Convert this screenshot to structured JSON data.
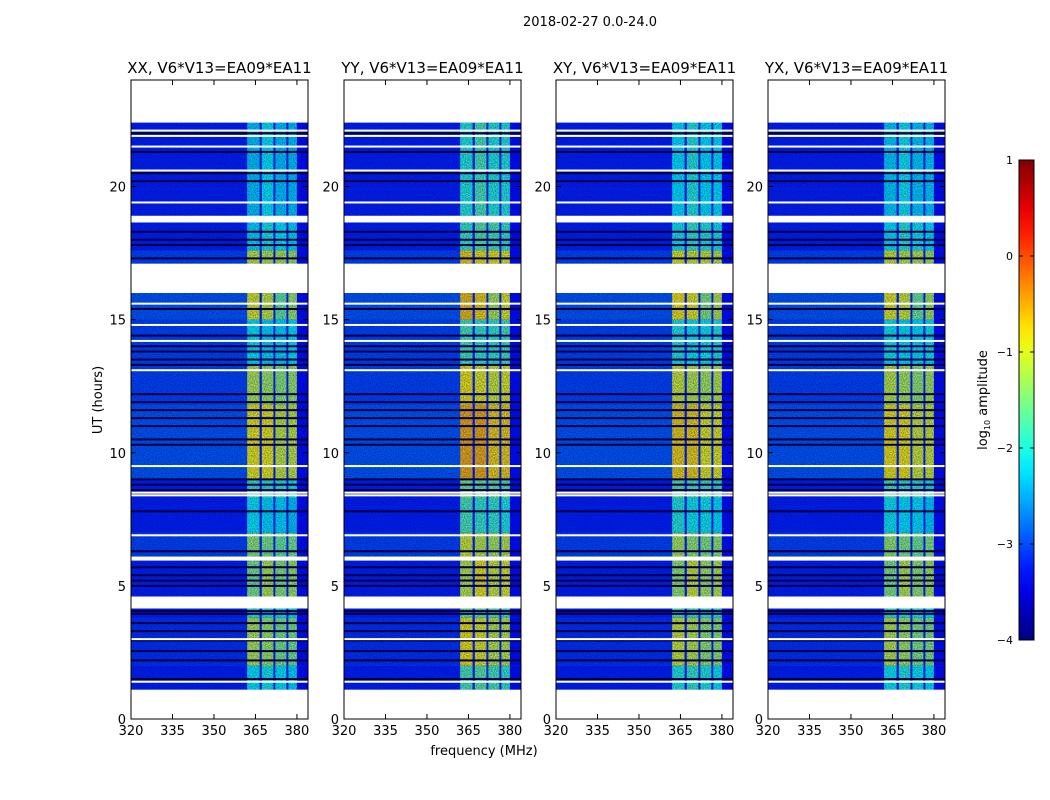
{
  "chart_data": {
    "type": "heatmap",
    "title": "2018-02-27 0.0-24.0",
    "xlabel": "frequency (MHz)",
    "ylabel": "UT (hours)",
    "xlim": [
      320,
      384
    ],
    "ylim": [
      0,
      24
    ],
    "xticks": [
      320,
      335,
      350,
      365,
      380
    ],
    "yticks": [
      0,
      5,
      10,
      15,
      20
    ],
    "colorbar": {
      "label_main": "log",
      "label_sub": "10",
      "label_rest": " amplitude",
      "colormap": "jet",
      "range": [
        -4,
        1
      ],
      "ticks": [
        1,
        0,
        -1,
        -2,
        -3,
        -4
      ]
    },
    "background_level": -3.2,
    "frequency_bands_mhz": [
      [
        320,
        362
      ],
      [
        362,
        366.5
      ],
      [
        367.3,
        371.5
      ],
      [
        372.2,
        376.2
      ],
      [
        376.9,
        380
      ],
      [
        380,
        384
      ]
    ],
    "time_segments": [
      {
        "start": 1.1,
        "end": 2.0,
        "levels": [
          -3.2,
          -2.1,
          -2.0,
          -2.1,
          -2.2,
          -3.3
        ]
      },
      {
        "start": 2.0,
        "end": 3.8,
        "levels": [
          -3.1,
          -1.2,
          -1.3,
          -1.5,
          -1.5,
          -3.3
        ]
      },
      {
        "start": 3.8,
        "end": 4.15,
        "levels": [
          -3.2,
          -1.9,
          -2.0,
          -2.0,
          -2.1,
          -3.3
        ]
      },
      {
        "start": 4.6,
        "end": 5.95,
        "levels": [
          -3.2,
          -1.5,
          -1.2,
          -1.4,
          -1.3,
          -3.3
        ]
      },
      {
        "start": 6.1,
        "end": 7.0,
        "levels": [
          -3.0,
          -1.4,
          -1.5,
          -1.6,
          -1.5,
          -3.3
        ]
      },
      {
        "start": 7.0,
        "end": 8.3,
        "levels": [
          -3.2,
          -2.1,
          -2.2,
          -2.2,
          -2.3,
          -3.3
        ]
      },
      {
        "start": 8.3,
        "end": 9.0,
        "levels": [
          -3.2,
          -1.8,
          -1.9,
          -1.9,
          -2.0,
          -3.3
        ]
      },
      {
        "start": 9.0,
        "end": 11.8,
        "levels": [
          -2.9,
          -0.9,
          -0.9,
          -1.1,
          -1.1,
          -3.3
        ]
      },
      {
        "start": 11.8,
        "end": 13.3,
        "levels": [
          -3.0,
          -1.2,
          -1.3,
          -1.4,
          -1.3,
          -3.3
        ]
      },
      {
        "start": 13.3,
        "end": 15.0,
        "levels": [
          -3.0,
          -2.1,
          -2.2,
          -2.2,
          -2.1,
          -3.3
        ]
      },
      {
        "start": 15.0,
        "end": 16.0,
        "levels": [
          -2.9,
          -1.0,
          -1.1,
          -1.6,
          -1.3,
          -3.3
        ]
      },
      {
        "start": 17.1,
        "end": 17.6,
        "levels": [
          -3.0,
          -1.1,
          -1.2,
          -1.2,
          -1.3,
          -3.3
        ]
      },
      {
        "start": 17.6,
        "end": 18.65,
        "levels": [
          -3.2,
          -2.2,
          -2.0,
          -2.1,
          -2.2,
          -3.3
        ]
      },
      {
        "start": 18.9,
        "end": 22.4,
        "levels": [
          -3.2,
          -2.3,
          -2.1,
          -2.3,
          -2.3,
          -3.3
        ]
      }
    ],
    "zero_rows_hours": [
      1.5,
      2.2,
      2.55,
      2.95,
      3.3,
      3.6,
      3.95,
      4.05,
      5.0,
      5.2,
      5.4,
      5.7,
      6.3,
      7.8,
      8.6,
      8.8,
      9.0,
      10.3,
      10.5,
      11.0,
      11.3,
      11.6,
      11.9,
      12.2,
      13.3,
      13.5,
      13.8,
      14.0,
      14.4,
      15.4,
      17.3,
      17.8,
      18.0,
      18.3,
      20.2,
      20.5,
      21.3,
      22.0
    ],
    "flagged_rows_hours": [
      1.4,
      3.0,
      6.9,
      8.4,
      8.5,
      9.5,
      13.1,
      14.2,
      14.8,
      15.6,
      19.4,
      20.6,
      21.5,
      21.9,
      22.1
    ],
    "panels": [
      {
        "title": "XX, V6*V13=EA09*EA11",
        "level_offset": 0.0
      },
      {
        "title": "YY, V6*V13=EA09*EA11",
        "level_offset": 0.35
      },
      {
        "title": "XY, V6*V13=EA09*EA11",
        "level_offset": 0.15
      },
      {
        "title": "YX, V6*V13=EA09*EA11",
        "level_offset": 0.05
      }
    ]
  }
}
